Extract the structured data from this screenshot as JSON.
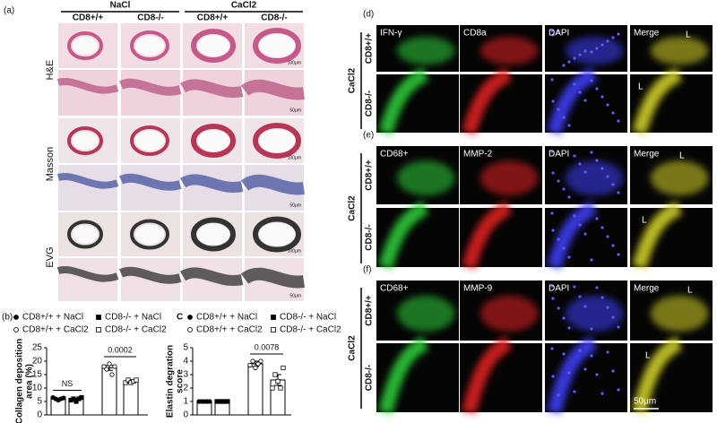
{
  "panel_a": {
    "label": "(a)",
    "groups": [
      "NaCl",
      "CaCl2"
    ],
    "columns": [
      "CD8+/+",
      "CD8-/-",
      "CD8+/+",
      "CD8-/-"
    ],
    "rows": [
      "H&E",
      "Masson",
      "EVG"
    ],
    "scale_bars": [
      "100μm",
      "50μm",
      "100μm",
      "50μm",
      "100μm",
      "50μm"
    ]
  },
  "chart_data": [
    {
      "type": "bar",
      "label": "(b)",
      "ylabel": [
        "Collagen deposition",
        "area (%)"
      ],
      "categories": [
        null,
        null,
        null,
        null
      ],
      "legend": [
        "CD8+/+ + NaCl",
        "CD8-/- + NaCl",
        "CD8+/+ + CaCl2",
        "CD8-/- + CaCl2"
      ],
      "markers": [
        "filled-circle",
        "filled-square",
        "open-circle",
        "open-square"
      ],
      "values": [
        6.0,
        5.8,
        17.5,
        12.4
      ],
      "errors": [
        0.3,
        0.3,
        0.9,
        0.5
      ],
      "points": [
        [
          6.5,
          6.0,
          5.5,
          6.0,
          6.3
        ],
        [
          5.5,
          6.0,
          5.0,
          6.0,
          6.5
        ],
        [
          18.0,
          17.0,
          19.0,
          15.0,
          18.0
        ],
        [
          12.0,
          13.0,
          12.0,
          12.5,
          13.0
        ]
      ],
      "ylim": [
        0,
        25
      ],
      "yticks": [
        0,
        5,
        10,
        15,
        20,
        25
      ],
      "annotations": [
        "NS",
        "0.0002"
      ]
    },
    {
      "type": "bar",
      "label": "C",
      "ylabel": [
        "Elastin degration",
        "score"
      ],
      "categories": [
        null,
        null,
        null,
        null
      ],
      "legend": [
        "CD8+/+ + NaCl",
        "CD8-/- + NaCl",
        "CD8+/+ + CaCl2",
        "CD8-/- + CaCl2"
      ],
      "markers": [
        "filled-circle",
        "filled-square",
        "open-circle",
        "open-square"
      ],
      "values": [
        1.0,
        1.0,
        3.8,
        2.6
      ],
      "errors": [
        0.0,
        0.0,
        0.2,
        0.4
      ],
      "points": [
        [
          1,
          1,
          1,
          1,
          1
        ],
        [
          1,
          1,
          1,
          1,
          1
        ],
        [
          3.7,
          4.0,
          3.5,
          3.8,
          4.0
        ],
        [
          2.0,
          3.0,
          2.5,
          2.0,
          3.5
        ]
      ],
      "ylim": [
        0,
        5
      ],
      "yticks": [
        0,
        1,
        2,
        3,
        4,
        5
      ],
      "annotations": [
        "0.0078"
      ]
    }
  ],
  "fluorescence": [
    {
      "label": "(d)",
      "channels": [
        "IFN-γ",
        "CD8a",
        "DAPI",
        "Merge"
      ],
      "group": "CaCl2",
      "rows": [
        "CD8+/+",
        "CD8-/-"
      ],
      "lumen": [
        "L",
        "L"
      ]
    },
    {
      "label": "(e)",
      "channels": [
        "CD68+",
        "MMP-2",
        "DAPI",
        "Merge"
      ],
      "group": "CaCl2",
      "rows": [
        "CD8+/+",
        "CD8-/-"
      ],
      "lumen": [
        "L",
        "L"
      ]
    },
    {
      "label": "(f)",
      "channels": [
        "CD68+",
        "MMP-9",
        "DAPI",
        "Merge"
      ],
      "group": "CaCl2",
      "rows": [
        "CD8+/+",
        "CD8-/-"
      ],
      "lumen": [
        "L",
        "L"
      ],
      "scale_bar": "50μm"
    }
  ]
}
